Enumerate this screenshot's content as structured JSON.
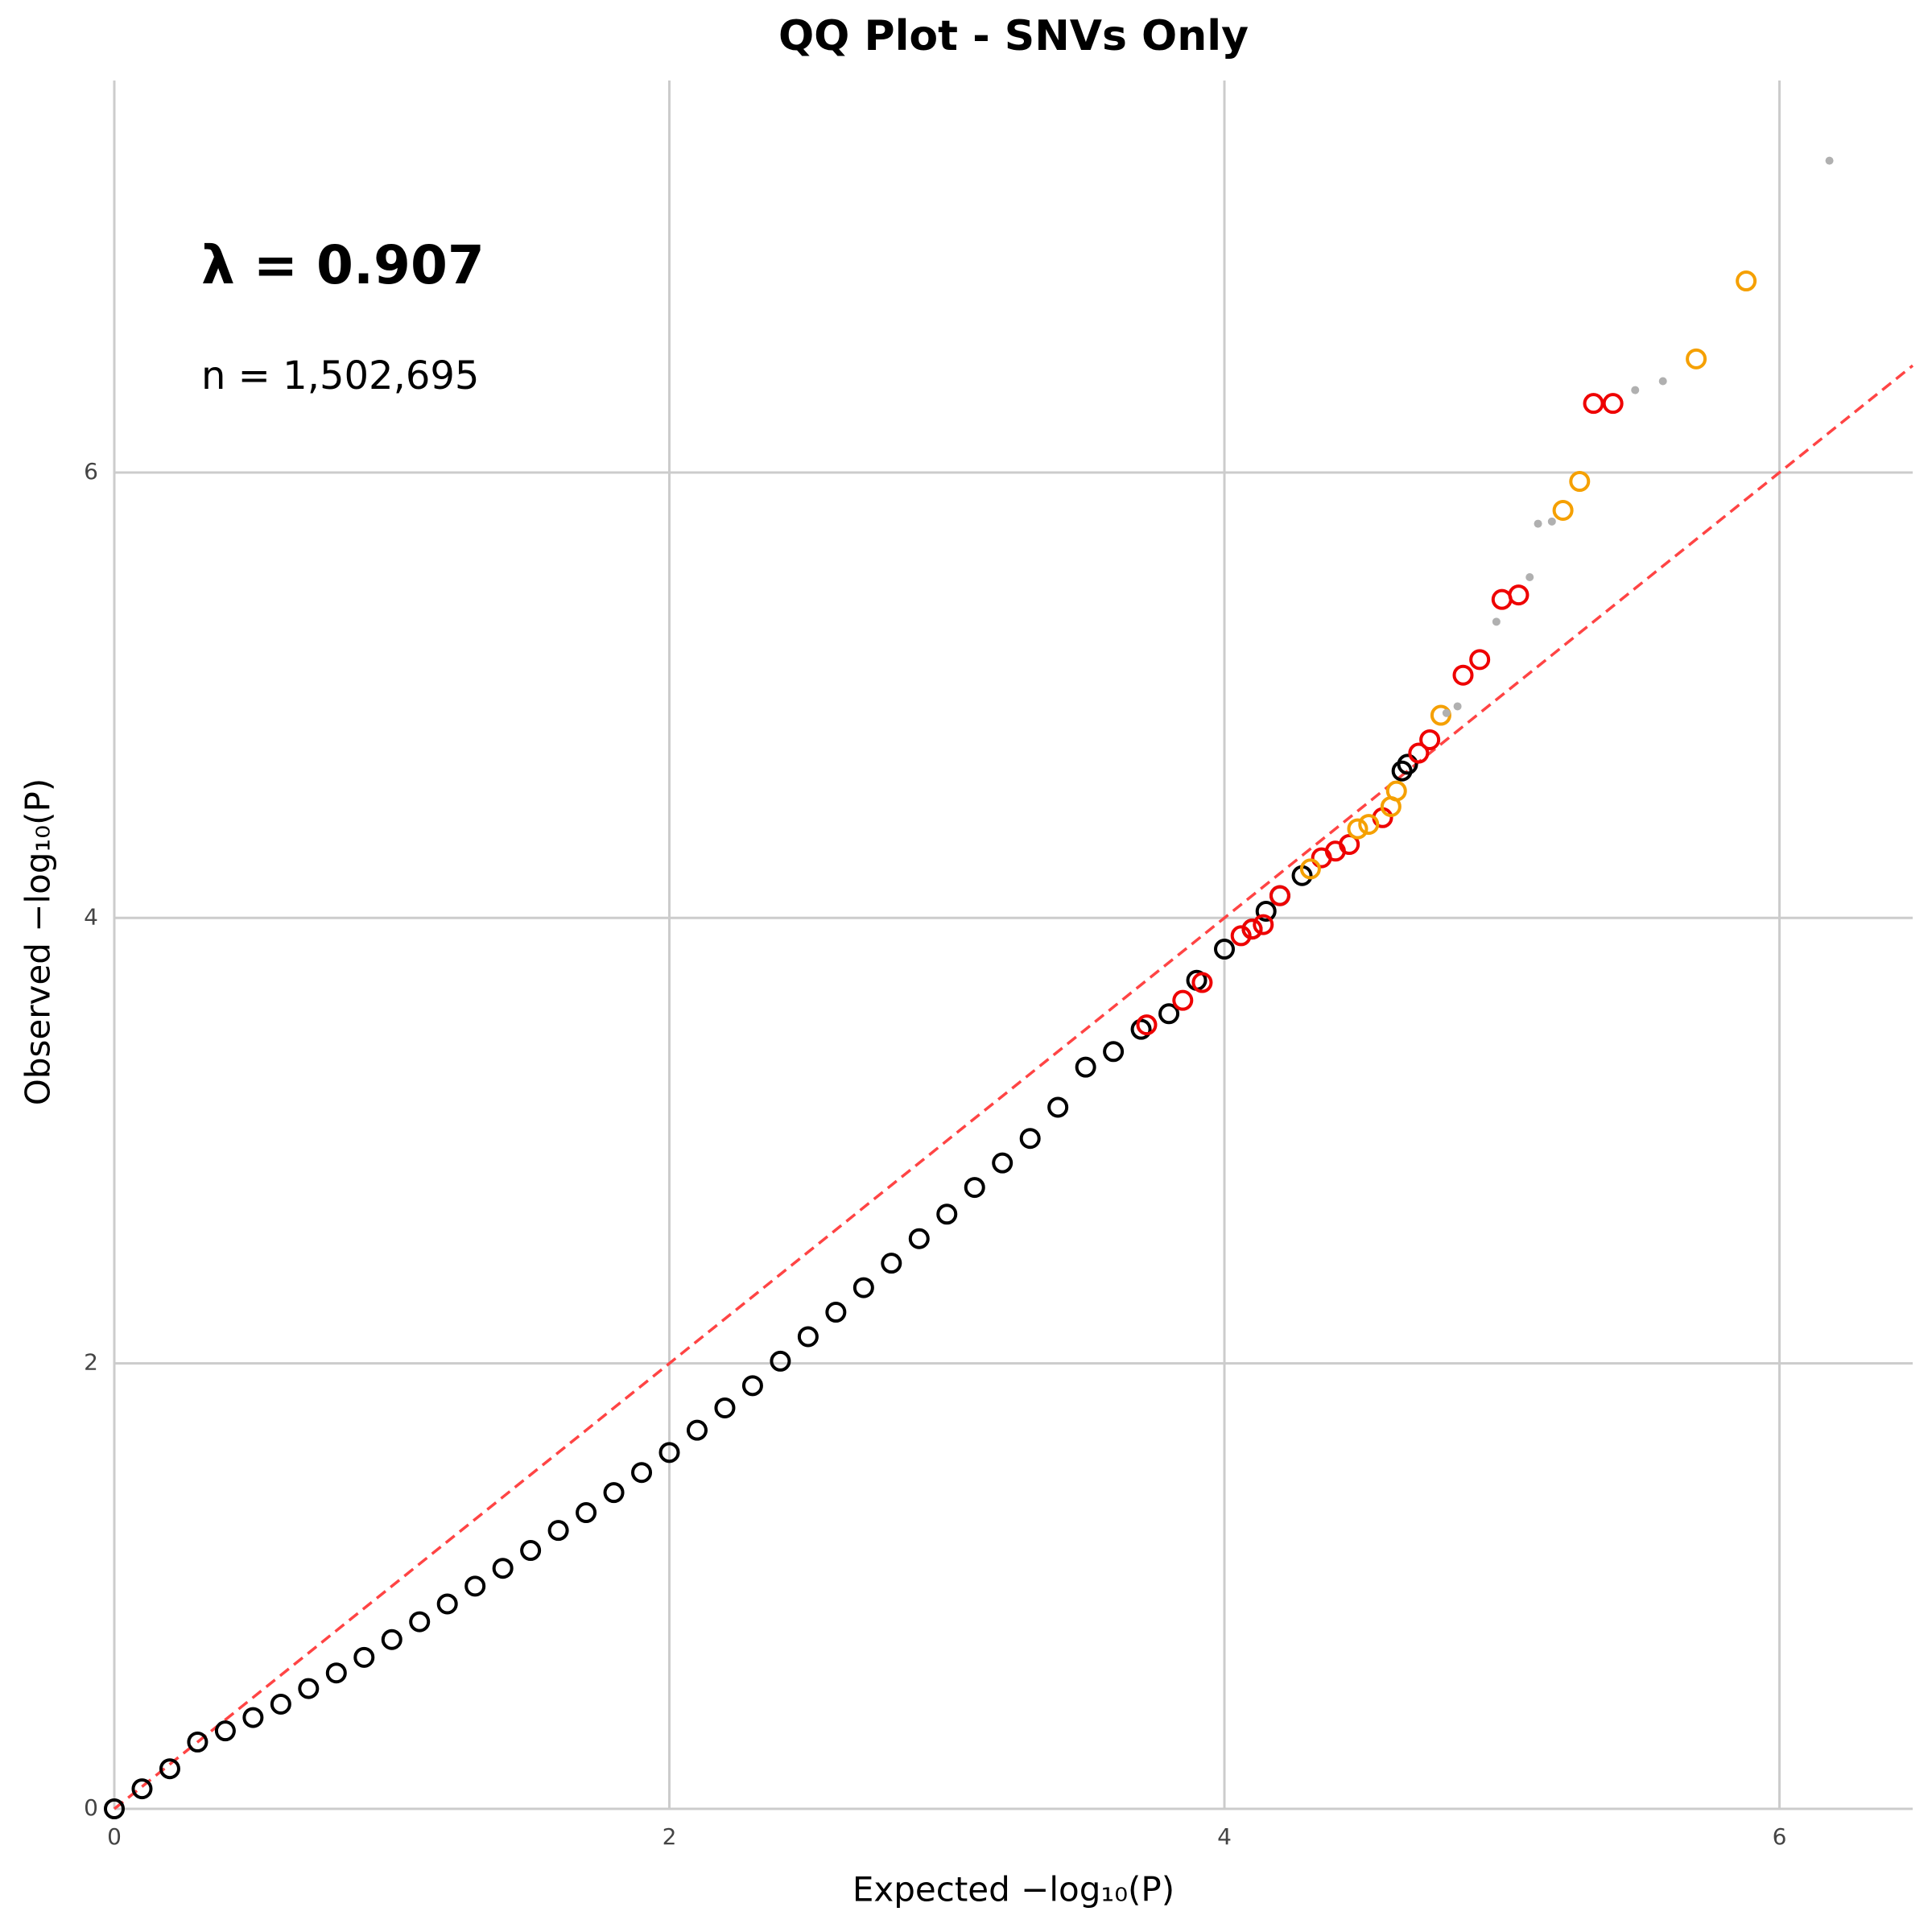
{
  "chart_data": {
    "type": "scatter",
    "title": "QQ Plot - SNVs Only",
    "xlabel": "Expected −log₁₀(P)",
    "ylabel": "Observed −log₁₀(P)",
    "annotations": [
      "λ = 0.907",
      "n = 1,502,695"
    ],
    "xlim": [
      0,
      6.48
    ],
    "ylim": [
      0,
      7.76
    ],
    "xticks": [
      0,
      2,
      4,
      6
    ],
    "yticks": [
      0,
      2,
      4,
      6
    ],
    "grid": true,
    "identity_line": {
      "color": "#ff4444",
      "dashed": true
    },
    "series": [
      {
        "color": "#000000",
        "marker": "hollow",
        "x": [
          0,
          0.1,
          0.2,
          0.3,
          0.4,
          0.5,
          0.6,
          0.7,
          0.8,
          0.9,
          1.0,
          1.1,
          1.2,
          1.3,
          1.4,
          1.5,
          1.6,
          1.7,
          1.8,
          1.9,
          2.0,
          2.1,
          2.2,
          2.3,
          2.4,
          2.5,
          2.6,
          2.7,
          2.8,
          2.9,
          3.0,
          3.1,
          3.2,
          3.3,
          3.4,
          3.5,
          3.6,
          3.7,
          3.8,
          3.9,
          4.0,
          4.1,
          4.15,
          4.2,
          4.28,
          4.64,
          4.66
        ],
        "values": [
          0.0,
          0.09,
          0.18,
          0.3,
          0.35,
          0.41,
          0.47,
          0.54,
          0.61,
          0.68,
          0.76,
          0.84,
          0.92,
          1.0,
          1.08,
          1.16,
          1.25,
          1.33,
          1.42,
          1.51,
          1.6,
          1.7,
          1.8,
          1.9,
          2.01,
          2.12,
          2.23,
          2.34,
          2.45,
          2.56,
          2.67,
          2.79,
          2.9,
          3.01,
          3.15,
          3.33,
          3.4,
          3.5,
          3.57,
          3.72,
          3.86,
          3.95,
          4.03,
          4.1,
          4.19,
          4.66,
          4.69
        ]
      },
      {
        "color": "#ee0000",
        "marker": "hollow",
        "x": [
          3.72,
          3.85,
          3.92,
          4.06,
          4.1,
          4.14,
          4.2,
          4.35,
          4.4,
          4.45,
          4.57,
          4.7,
          4.74,
          4.86,
          4.92,
          5.0,
          5.06,
          5.33,
          5.4
        ],
        "values": [
          3.52,
          3.63,
          3.71,
          3.92,
          3.95,
          3.97,
          4.1,
          4.27,
          4.3,
          4.33,
          4.45,
          4.74,
          4.8,
          5.09,
          5.16,
          5.43,
          5.45,
          6.31,
          6.31
        ]
      },
      {
        "color": "#f5a000",
        "marker": "hollow",
        "x": [
          4.31,
          4.48,
          4.52,
          4.6,
          4.62,
          4.78,
          5.22,
          5.28,
          5.7,
          5.88
        ],
        "values": [
          4.22,
          4.4,
          4.42,
          4.5,
          4.57,
          4.91,
          5.83,
          5.96,
          6.51,
          6.86
        ]
      },
      {
        "color": "#b0b0b0",
        "marker": "dot",
        "x": [
          4.8,
          4.84,
          4.98,
          5.1,
          5.13,
          5.18,
          5.48,
          5.58,
          6.18
        ],
        "values": [
          4.92,
          4.95,
          5.33,
          5.53,
          5.77,
          5.78,
          6.37,
          6.41,
          7.4
        ]
      }
    ]
  }
}
